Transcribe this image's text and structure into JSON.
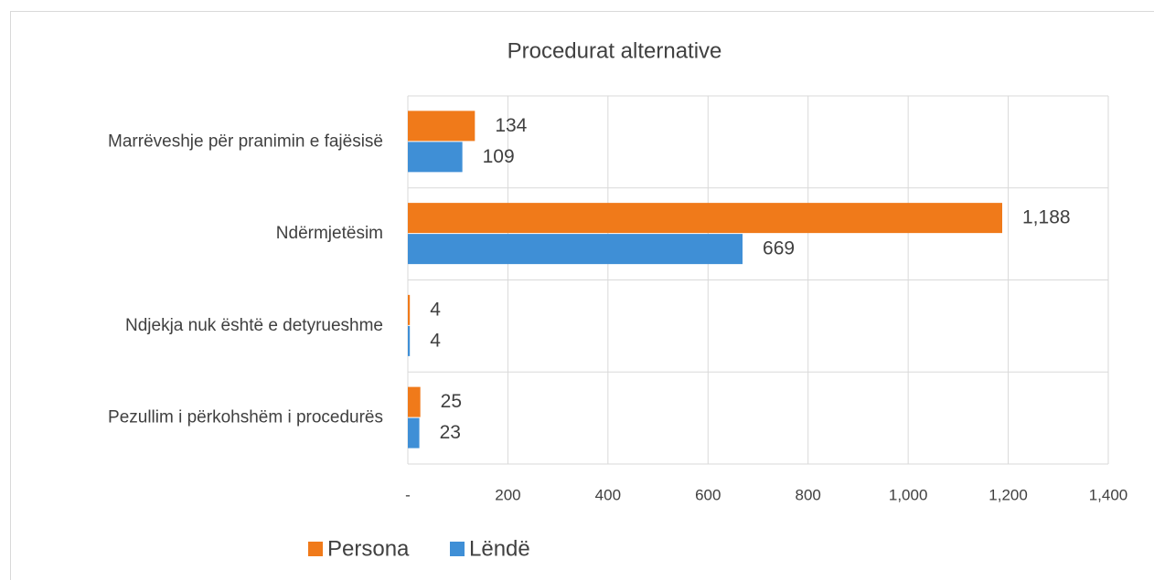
{
  "chart_data": {
    "type": "bar",
    "orientation": "horizontal",
    "title": "Procedurat alternative",
    "categories": [
      "Marrëveshje për pranimin e fajësisë",
      "Ndërmjetësim",
      "Ndjekja nuk është e detyrueshme",
      "Pezullim i përkohshëm i procedurës"
    ],
    "series": [
      {
        "name": "Persona",
        "color": "#f07a1a",
        "values": [
          134,
          1188,
          4,
          25
        ],
        "value_labels": [
          "134",
          "1,188",
          "4",
          "25"
        ]
      },
      {
        "name": "Lëndë",
        "color": "#3f8fd6",
        "values": [
          109,
          669,
          4,
          23
        ]
      }
    ],
    "xlim": [
      0,
      1400
    ],
    "xticks": [
      {
        "value": 0,
        "label": "-"
      },
      200,
      400,
      600,
      800,
      {
        "value": 1000,
        "label": "1,000"
      },
      {
        "value": 1200,
        "label": "1,200"
      },
      {
        "value": 1400,
        "label": "1,400"
      }
    ],
    "grid": true,
    "legend": "bottom"
  }
}
